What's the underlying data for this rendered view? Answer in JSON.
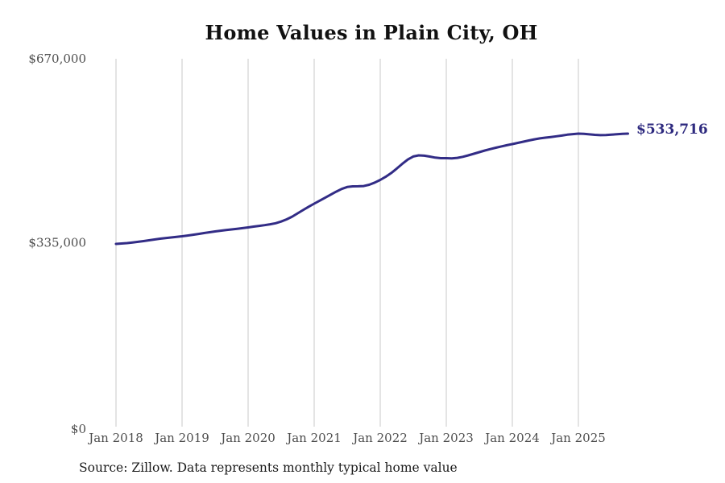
{
  "title": "Home Values in Plain City, OH",
  "source_note": "Source: Zillow. Data represents monthly typical home value",
  "end_label": "$533,716",
  "colors": {
    "line": "#322c86",
    "end_label_text": "#2e2a7f",
    "grid": "#c9c9c9",
    "axis_text": "#4d4d4d",
    "title_text": "#111111",
    "background": "#ffffff"
  },
  "chart_data": {
    "type": "line",
    "title": "Home Values in Plain City, OH",
    "xlabel": "",
    "ylabel": "",
    "x_tick_labels": [
      "Jan 2018",
      "Jan 2019",
      "Jan 2020",
      "Jan 2021",
      "Jan 2022",
      "Jan 2023",
      "Jan 2024",
      "Jan 2025"
    ],
    "y_tick_labels": [
      "$0",
      "$335,000",
      "$670,000"
    ],
    "y_ticks": [
      0,
      335000,
      670000
    ],
    "ylim": [
      0,
      670000
    ],
    "grid": "vertical-only",
    "legend_position": "none",
    "x_monthly_start": "Jan 2018",
    "final_value": 533716,
    "series": [
      {
        "name": "Typical home value (monthly)",
        "values": [
          332800,
          333500,
          334300,
          335400,
          336600,
          337900,
          339400,
          340900,
          342300,
          343500,
          344600,
          345700,
          346700,
          348000,
          349500,
          351000,
          352600,
          354100,
          355500,
          356800,
          358000,
          359200,
          360400,
          361600,
          362900,
          364300,
          365700,
          367000,
          368500,
          370500,
          373500,
          377500,
          382500,
          388500,
          394500,
          400500,
          406100,
          411500,
          417000,
          422500,
          428000,
          433000,
          436500,
          437600,
          437800,
          438200,
          440500,
          444500,
          449400,
          455000,
          462000,
          470000,
          478500,
          486500,
          492000,
          494100,
          493500,
          491800,
          490000,
          489000,
          488900,
          488600,
          489500,
          491500,
          494000,
          497000,
          500000,
          502900,
          505500,
          508000,
          510300,
          512500,
          514600,
          516800,
          519000,
          521200,
          523300,
          525000,
          526300,
          527500,
          528800,
          530200,
          531700,
          532800,
          533650,
          533200,
          532300,
          531400,
          530900,
          531000,
          531700,
          532700,
          533300,
          533716
        ]
      }
    ]
  }
}
